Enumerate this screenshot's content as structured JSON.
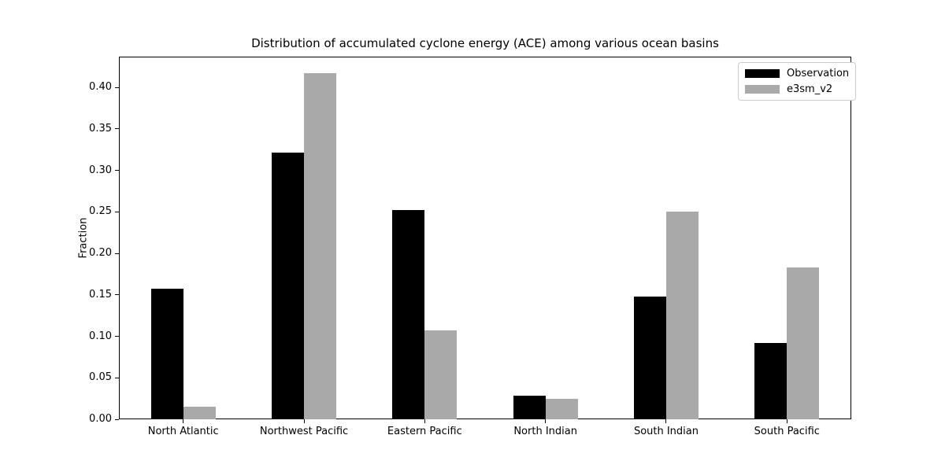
{
  "chart_data": {
    "type": "bar",
    "title": "Distribution of accumulated cyclone energy (ACE) among various ocean basins",
    "xlabel": "",
    "ylabel": "Fraction",
    "categories": [
      "North Atlantic",
      "Northwest Pacific",
      "Eastern Pacific",
      "North Indian",
      "South Indian",
      "South Pacific"
    ],
    "series": [
      {
        "name": "Observation",
        "color": "#000000",
        "values": [
          0.157,
          0.321,
          0.252,
          0.028,
          0.148,
          0.092
        ]
      },
      {
        "name": "e3sm_v2",
        "color": "#a9a9a9",
        "values": [
          0.015,
          0.417,
          0.107,
          0.025,
          0.25,
          0.183
        ]
      }
    ],
    "ylim": [
      0,
      0.437
    ],
    "yticks": [
      "0.00",
      "0.05",
      "0.10",
      "0.15",
      "0.20",
      "0.25",
      "0.30",
      "0.35",
      "0.40"
    ],
    "grid": false,
    "legend_position": "upper right",
    "colors": {
      "background": "#ffffff",
      "spine": "#000000",
      "legend_border": "#cccccc"
    }
  }
}
